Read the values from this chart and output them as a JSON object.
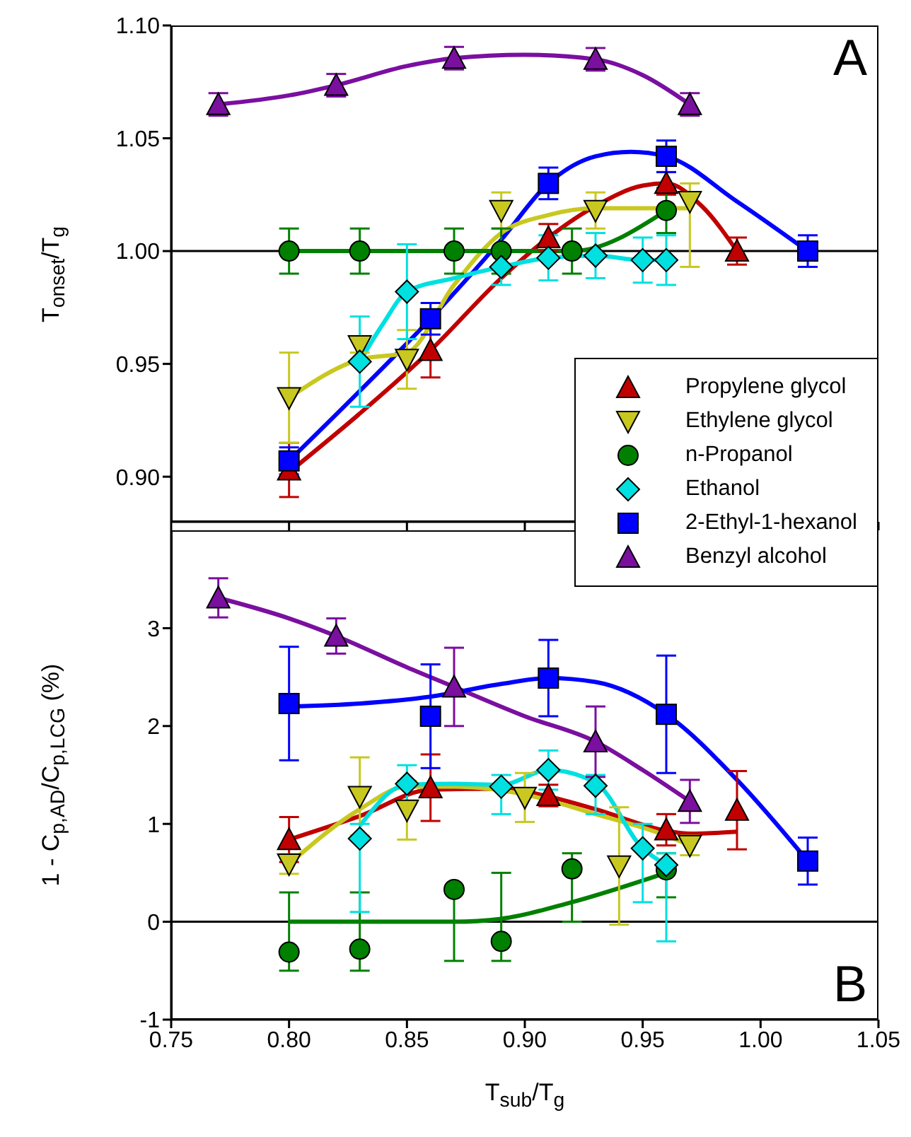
{
  "chart_data": [
    {
      "type": "scatter",
      "ylabel": "T$_{onset}$/T$_{g}$",
      "annotations": [
        "A"
      ],
      "legend": "bottom right",
      "tick_labels": "y",
      "xlim": [
        0.75,
        1.05
      ],
      "xticks": [
        {
          "value": 0.75,
          "label": null
        },
        {
          "value": 0.8,
          "label": null
        },
        {
          "value": 0.85,
          "label": null
        },
        {
          "value": 0.9,
          "label": null
        },
        {
          "value": 0.95,
          "label": null
        },
        {
          "value": 1.0,
          "label": null
        },
        {
          "value": 1.05,
          "label": null
        }
      ],
      "ylim": [
        0.88,
        1.1
      ],
      "yticks": [
        {
          "value": 0.9,
          "label": "0.90"
        },
        {
          "value": 0.95,
          "label": "0.95"
        },
        {
          "value": 1.0,
          "label": "1.00"
        },
        {
          "value": 1.05,
          "label": "1.05"
        },
        {
          "value": 1.1,
          "label": "1.10"
        }
      ],
      "ref_lines": [
        {
          "axis": "y",
          "value": 1.0,
          "color": "#000000"
        }
      ],
      "series": [
        {
          "type": "line",
          "color": "#7a0fa0",
          "marker": "none",
          "x": [
            0.77,
            0.8,
            0.82,
            0.85,
            0.87,
            0.9,
            0.93,
            0.95,
            0.97
          ],
          "values": [
            1.065,
            1.069,
            1.0735,
            1.082,
            1.0855,
            1.087,
            1.085,
            1.078,
            1.065
          ]
        },
        {
          "type": "line",
          "color": "#0000ff",
          "marker": "none",
          "x": [
            0.8,
            0.83,
            0.86,
            0.89,
            0.91,
            0.93,
            0.945,
            0.96,
            0.99,
            1.02
          ],
          "values": [
            0.907,
            0.938,
            0.97,
            1.005,
            1.03,
            1.042,
            1.044,
            1.042,
            1.022,
            1.0
          ]
        },
        {
          "type": "line",
          "color": "#c00000",
          "marker": "none",
          "x": [
            0.8,
            0.83,
            0.86,
            0.89,
            0.91,
            0.93,
            0.95,
            0.96,
            0.975,
            0.99
          ],
          "values": [
            0.902,
            0.928,
            0.956,
            0.988,
            1.006,
            1.02,
            1.029,
            1.03,
            1.02,
            1.0
          ]
        },
        {
          "type": "line",
          "color": "#c8c820",
          "marker": "none",
          "x": [
            0.8,
            0.83,
            0.85,
            0.87,
            0.89,
            0.91,
            0.93,
            0.96,
            0.97
          ],
          "values": [
            0.935,
            0.952,
            0.955,
            0.985,
            1.008,
            1.016,
            1.019,
            1.019,
            1.019
          ]
        },
        {
          "type": "line",
          "color": "#008000",
          "marker": "none",
          "x": [
            0.8,
            0.89,
            0.92,
            0.96
          ],
          "values": [
            1.0,
            1.0,
            1.0,
            1.018
          ]
        },
        {
          "type": "line",
          "color": "#00e0e0",
          "marker": "none",
          "x": [
            0.83,
            0.84,
            0.85,
            0.87,
            0.89,
            0.91,
            0.93,
            0.95,
            0.96
          ],
          "values": [
            0.951,
            0.968,
            0.982,
            0.988,
            0.993,
            0.997,
            0.998,
            0.996,
            0.996
          ]
        },
        {
          "type": "scatter",
          "name": "Propylene glycol",
          "color": "#c00000",
          "marker": "triangle",
          "x": [
            0.8,
            0.86,
            0.91,
            0.96,
            0.99
          ],
          "values": [
            0.903,
            0.956,
            1.006,
            1.03,
            1.0
          ],
          "errors": [
            0.012,
            0.012,
            0.006,
            0.005,
            0.006
          ]
        },
        {
          "type": "scatter",
          "name": "Ethylene glycol",
          "color": "#c8c820",
          "marker": "triangle-down",
          "x": [
            0.8,
            0.83,
            0.85,
            0.89,
            0.93,
            0.97
          ],
          "values": [
            0.935,
            0.958,
            0.952,
            1.018,
            1.018,
            1.022
          ],
          "errors": [
            0.02,
            0.003,
            0.013,
            0.008,
            0.008,
            [
              0.993,
              1.03
            ]
          ]
        },
        {
          "type": "scatter",
          "name": "n-Propanol",
          "color": "#008000",
          "marker": "circle",
          "x": [
            0.8,
            0.83,
            0.87,
            0.89,
            0.92,
            0.96
          ],
          "values": [
            1.0,
            1.0,
            1.0,
            1.0,
            1.0,
            1.018
          ],
          "errors": [
            0.01,
            0.01,
            0.01,
            0.01,
            0.01,
            0.01
          ]
        },
        {
          "type": "scatter",
          "name": "Ethanol",
          "color": "#00e0e0",
          "marker": "diamond",
          "x": [
            0.83,
            0.85,
            0.89,
            0.91,
            0.93,
            0.95,
            0.96
          ],
          "values": [
            0.951,
            0.982,
            0.993,
            0.997,
            0.998,
            0.996,
            0.996
          ],
          "errors": [
            0.02,
            0.021,
            0.008,
            0.01,
            0.01,
            0.01,
            0.011
          ]
        },
        {
          "type": "scatter",
          "name": "2-Ethyl-1-hexanol",
          "color": "#0000ff",
          "marker": "square",
          "x": [
            0.8,
            0.86,
            0.91,
            0.96,
            1.02
          ],
          "values": [
            0.907,
            0.97,
            1.03,
            1.042,
            1.0
          ],
          "errors": [
            0.006,
            0.007,
            0.007,
            0.007,
            0.007
          ]
        },
        {
          "type": "scatter",
          "name": "Benzyl alcohol",
          "color": "#7a0fa0",
          "marker": "triangle",
          "x": [
            0.77,
            0.82,
            0.87,
            0.93,
            0.97
          ],
          "values": [
            1.065,
            1.0735,
            1.0855,
            1.085,
            1.065
          ],
          "errors": [
            0.005,
            0.005,
            0.005,
            0.005,
            0.005
          ]
        }
      ]
    },
    {
      "type": "scatter",
      "ylabel": "1 - C$_{p,AD}$/C$_{p,LCG}$ (%)",
      "xlabel": "T$_{sub}$/T$_{g}$",
      "annotations": [
        "B"
      ],
      "xlim": [
        0.75,
        1.05
      ],
      "xticks": [
        {
          "value": 0.75,
          "label": "0.75"
        },
        {
          "value": 0.8,
          "label": "0.80"
        },
        {
          "value": 0.85,
          "label": "0.85"
        },
        {
          "value": 0.9,
          "label": "0.90"
        },
        {
          "value": 0.95,
          "label": "0.95"
        },
        {
          "value": 1.0,
          "label": "1.00"
        },
        {
          "value": 1.05,
          "label": "1.05"
        }
      ],
      "ylim": [
        -1,
        4
      ],
      "yticks": [
        -1,
        0,
        1,
        2,
        3
      ],
      "ref_lines": [
        {
          "axis": "y",
          "value": 0,
          "color": "#000000"
        }
      ],
      "series": [
        {
          "type": "line",
          "color": "#7a0fa0",
          "marker": "none",
          "x": [
            0.77,
            0.8,
            0.82,
            0.85,
            0.87,
            0.9,
            0.93,
            0.95,
            0.97
          ],
          "values": [
            3.31,
            3.1,
            2.92,
            2.6,
            2.4,
            2.1,
            1.84,
            1.55,
            1.23
          ]
        },
        {
          "type": "line",
          "color": "#0000ff",
          "marker": "none",
          "x": [
            0.8,
            0.83,
            0.86,
            0.89,
            0.91,
            0.93,
            0.96,
            0.99,
            1.02
          ],
          "values": [
            2.2,
            2.23,
            2.3,
            2.43,
            2.49,
            2.45,
            2.12,
            1.45,
            0.62
          ]
        },
        {
          "type": "line",
          "color": "#c00000",
          "marker": "none",
          "x": [
            0.8,
            0.83,
            0.86,
            0.89,
            0.91,
            0.93,
            0.96,
            0.97,
            0.99
          ],
          "values": [
            0.84,
            1.08,
            1.35,
            1.36,
            1.28,
            1.15,
            0.93,
            0.9,
            0.92
          ]
        },
        {
          "type": "line",
          "color": "#c8c820",
          "marker": "none",
          "x": [
            0.8,
            0.83,
            0.85,
            0.87,
            0.9,
            0.93,
            0.96,
            0.97
          ],
          "values": [
            0.59,
            1.15,
            1.38,
            1.38,
            1.3,
            1.1,
            0.88,
            0.78
          ]
        },
        {
          "type": "line",
          "color": "#00e0e0",
          "marker": "none",
          "x": [
            0.83,
            0.85,
            0.87,
            0.89,
            0.91,
            0.93,
            0.95,
            0.96
          ],
          "values": [
            0.98,
            1.4,
            1.41,
            1.4,
            1.55,
            1.42,
            0.75,
            0.58
          ]
        },
        {
          "type": "line",
          "color": "#008000",
          "marker": "none",
          "x": [
            0.8,
            0.87,
            0.89,
            0.92,
            0.96
          ],
          "values": [
            0,
            0,
            0.03,
            0.2,
            0.5
          ]
        },
        {
          "type": "scatter",
          "color": "#c00000",
          "marker": "triangle",
          "x": [
            0.8,
            0.86,
            0.91,
            0.96,
            0.99
          ],
          "values": [
            0.84,
            1.37,
            1.29,
            0.94,
            1.14
          ],
          "errors": [
            0.23,
            0.34,
            0.11,
            0.16,
            0.4
          ]
        },
        {
          "type": "scatter",
          "color": "#c8c820",
          "marker": "triangle-down",
          "x": [
            0.8,
            0.83,
            0.85,
            0.9,
            0.94,
            0.97
          ],
          "values": [
            0.59,
            1.28,
            1.14,
            1.27,
            0.57,
            0.78
          ],
          "errors": [
            0.1,
            0.4,
            0.3,
            0.25,
            0.6,
            0.1
          ]
        },
        {
          "type": "scatter",
          "color": "#008000",
          "marker": "circle",
          "x": [
            0.8,
            0.83,
            0.87,
            0.89,
            0.92,
            0.96
          ],
          "values": [
            -0.31,
            -0.28,
            0.33,
            -0.2,
            0.54,
            0.53
          ],
          "errors": [
            [
              -0.5,
              0.3
            ],
            [
              -0.5,
              0.3
            ],
            [
              -0.4,
              0.33
            ],
            [
              -0.4,
              0.5
            ],
            [
              0,
              0.7
            ],
            [
              0.25,
              0.7
            ]
          ]
        },
        {
          "type": "scatter",
          "color": "#00e0e0",
          "marker": "diamond",
          "x": [
            0.83,
            0.85,
            0.89,
            0.91,
            0.93,
            0.95,
            0.96
          ],
          "values": [
            0.85,
            1.41,
            1.38,
            1.55,
            1.39,
            0.75,
            0.58
          ],
          "errors": [
            [
              0.1,
              1.0
            ],
            [
              1.2,
              1.6
            ],
            [
              1.1,
              1.5
            ],
            [
              1.35,
              1.75
            ],
            [
              1.1,
              1.5
            ],
            [
              0.2,
              1.0
            ],
            [
              -0.2,
              0.7
            ]
          ]
        },
        {
          "type": "scatter",
          "color": "#0000ff",
          "marker": "square",
          "x": [
            0.8,
            0.86,
            0.91,
            0.96,
            1.02
          ],
          "values": [
            2.23,
            2.1,
            2.49,
            2.12,
            0.62
          ],
          "errors": [
            0.58,
            0.53,
            0.39,
            0.6,
            0.24
          ]
        },
        {
          "type": "scatter",
          "color": "#7a0fa0",
          "marker": "triangle",
          "x": [
            0.77,
            0.82,
            0.87,
            0.93,
            0.97
          ],
          "values": [
            3.31,
            2.92,
            2.4,
            1.84,
            1.23
          ],
          "errors": [
            0.2,
            0.18,
            0.4,
            0.36,
            0.22
          ]
        }
      ]
    }
  ]
}
